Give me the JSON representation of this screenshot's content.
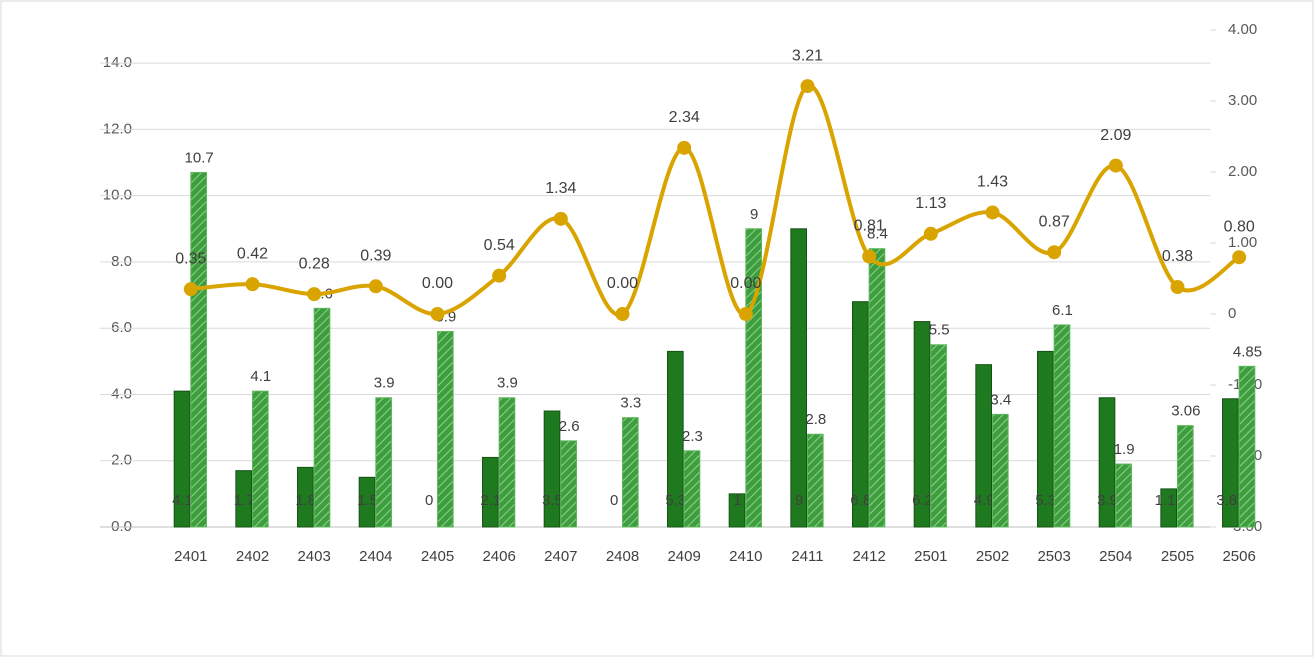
{
  "chart_data": {
    "type": "combo",
    "categories": [
      "2401",
      "2402",
      "2403",
      "2404",
      "2405",
      "2406",
      "2407",
      "2408",
      "2409",
      "2410",
      "2411",
      "2412",
      "2501",
      "2502",
      "2503",
      "2504",
      "2505",
      "2506"
    ],
    "series": [
      {
        "type": "bar",
        "color": "#1f7a1f",
        "values": [
          4.1,
          1.7,
          1.8,
          1.5,
          0.0,
          2.1,
          3.5,
          0.0,
          5.3,
          1.0,
          9.0,
          6.8,
          6.2,
          4.9,
          5.3,
          3.9,
          1.15,
          3.87
        ]
      },
      {
        "type": "bar",
        "color": "#5cb85c",
        "values": [
          10.7,
          4.1,
          6.6,
          3.9,
          5.9,
          3.9,
          2.6,
          3.3,
          2.3,
          9.0,
          2.8,
          8.4,
          5.5,
          3.4,
          6.1,
          1.9,
          3.06,
          4.85
        ]
      },
      {
        "type": "line",
        "axis": "y2",
        "color": "#d9a400",
        "values": [
          0.35,
          0.42,
          0.28,
          0.39,
          0.0,
          0.54,
          1.34,
          0.0,
          2.34,
          0.0,
          3.21,
          0.81,
          1.13,
          1.43,
          0.87,
          2.09,
          0.38,
          0.8
        ],
        "value_labels": [
          "0.35",
          "0.42",
          "0.28",
          "0.39",
          "0.00",
          "0.54",
          "1.34",
          "0.00",
          "2.34",
          "0.00",
          "3.21",
          "0.81",
          "1.13",
          "1.43",
          "0.87",
          "2.09",
          "0.38",
          "0.80"
        ]
      }
    ],
    "ylim": [
      0,
      15
    ],
    "yticks": [
      {
        "value": 0,
        "label": "0.0"
      },
      {
        "value": 2,
        "label": "2.0"
      },
      {
        "value": 4,
        "label": "4.0"
      },
      {
        "value": 6,
        "label": "6.0"
      },
      {
        "value": 8,
        "label": "8.0"
      },
      {
        "value": 10,
        "label": "10.0"
      },
      {
        "value": 12,
        "label": "12.0"
      },
      {
        "value": 14,
        "label": "14.0"
      }
    ],
    "y2lim": [
      -3,
      4
    ],
    "y2ticks": [
      {
        "value": -3,
        "label": "-3.00"
      },
      {
        "value": -2,
        "label": "-2.00"
      },
      {
        "value": -1,
        "label": "-1.00"
      },
      0,
      {
        "value": 1,
        "label": "1.00"
      },
      {
        "value": 2,
        "label": "2.00"
      },
      {
        "value": 3,
        "label": "3.00"
      },
      {
        "value": 4,
        "label": "4.00"
      }
    ],
    "grid": true
  }
}
